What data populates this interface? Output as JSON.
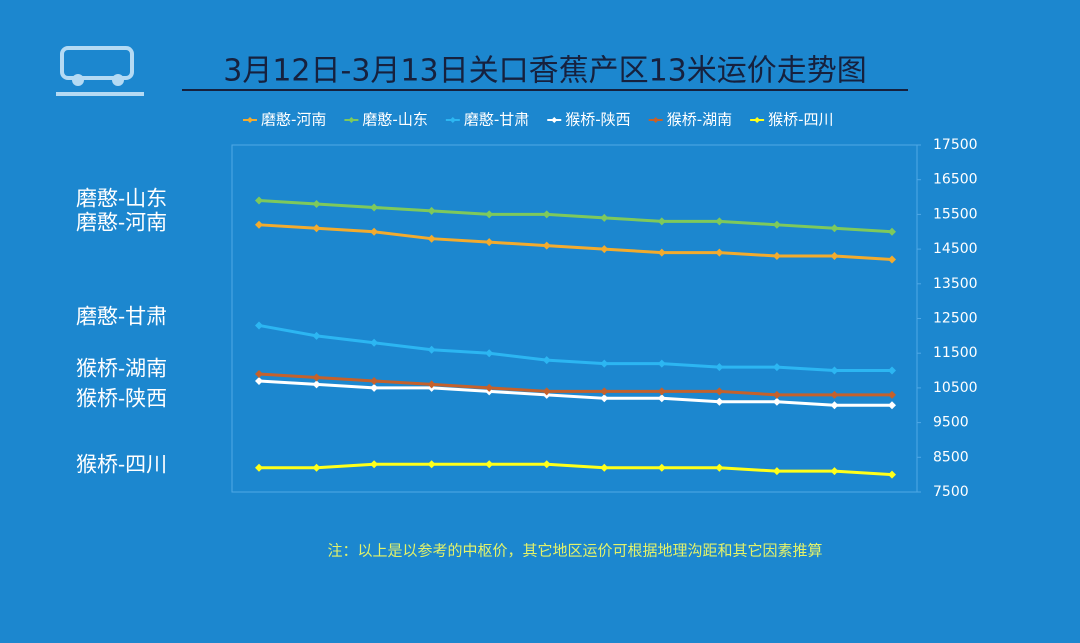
{
  "chart_data": {
    "type": "line",
    "title": "3月12日-3月13日关口香蕉产区13米运价走势图",
    "legend": "top",
    "categories": [
      null,
      null,
      null,
      null,
      null,
      null,
      null,
      null,
      null,
      null,
      null,
      null
    ],
    "series": [
      {
        "name": "磨憨-河南",
        "color": "#f2ab2e",
        "values": [
          15200,
          15100,
          15000,
          14800,
          14700,
          14600,
          14500,
          14400,
          14400,
          14300,
          14300,
          14200
        ]
      },
      {
        "name": "磨憨-山东",
        "color": "#7ec95c",
        "values": [
          15900,
          15800,
          15700,
          15600,
          15500,
          15500,
          15400,
          15300,
          15300,
          15200,
          15100,
          15000
        ]
      },
      {
        "name": "磨憨-甘肃",
        "color": "#2cb6f2",
        "values": [
          12300,
          12000,
          11800,
          11600,
          11500,
          11300,
          11200,
          11200,
          11100,
          11100,
          11000,
          11000
        ]
      },
      {
        "name": "猴桥-陕西",
        "color": "#ffffff",
        "values": [
          10700,
          10600,
          10500,
          10500,
          10400,
          10300,
          10200,
          10200,
          10100,
          10100,
          10000,
          10000
        ]
      },
      {
        "name": "猴桥-湖南",
        "color": "#c4612c",
        "values": [
          10900,
          10800,
          10700,
          10600,
          10500,
          10400,
          10400,
          10400,
          10400,
          10300,
          10300,
          10300
        ]
      },
      {
        "name": "猴桥-四川",
        "color": "#ffff1a",
        "values": [
          8200,
          8200,
          8300,
          8300,
          8300,
          8300,
          8200,
          8200,
          8200,
          8100,
          8100,
          8000
        ]
      }
    ],
    "ylim": [
      7500,
      17500
    ],
    "yticks": [
      7500,
      8500,
      9500,
      10500,
      11500,
      12500,
      13500,
      14500,
      15500,
      16500,
      17500
    ],
    "grid": false,
    "note": "注：以上是以参考的中枢价，其它地区运价可根据地理沟距和其它因素推算"
  }
}
